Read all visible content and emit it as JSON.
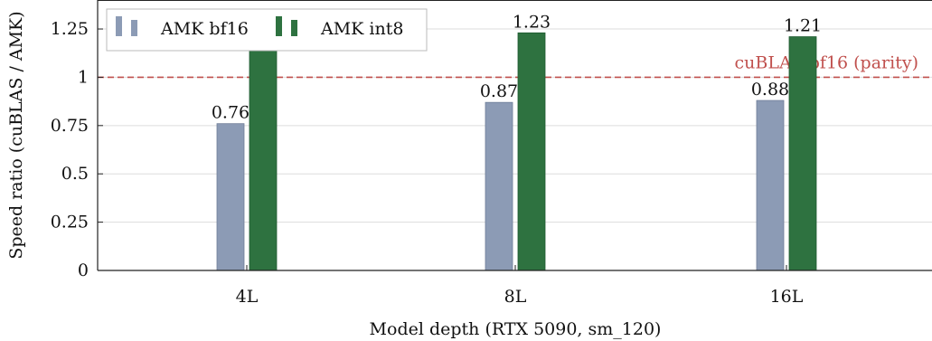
{
  "chart_data": {
    "type": "bar",
    "title": "",
    "xlabel": "Model depth (RTX 5090, sm_120)",
    "ylabel": "Speed ratio (cuBLAS / AMK)",
    "categories": [
      "4L",
      "8L",
      "16L"
    ],
    "series": [
      {
        "name": "AMK bf16",
        "values": [
          0.76,
          0.87,
          0.88
        ],
        "labels": [
          "0.76",
          "0.87",
          "0.88"
        ],
        "color": "#8c9bb5"
      },
      {
        "name": "AMK int8",
        "values": [
          1.19,
          1.23,
          1.21
        ],
        "labels": [
          "1.19",
          "1.23",
          "1.21"
        ],
        "color": "#2e7240"
      }
    ],
    "reference_line": {
      "value": 1.0,
      "label": "cuBLAS bf16 (parity)",
      "color": "#c0504d",
      "style": "dashed"
    },
    "ylim": [
      0,
      1.4
    ],
    "yticks": [
      0,
      0.25,
      0.5,
      0.75,
      1,
      1.25
    ],
    "ytick_labels": [
      "0",
      "0.25",
      "0.5",
      "0.75",
      "1",
      "1.25"
    ],
    "grid": "horizontal",
    "legend_position": "top-left"
  }
}
